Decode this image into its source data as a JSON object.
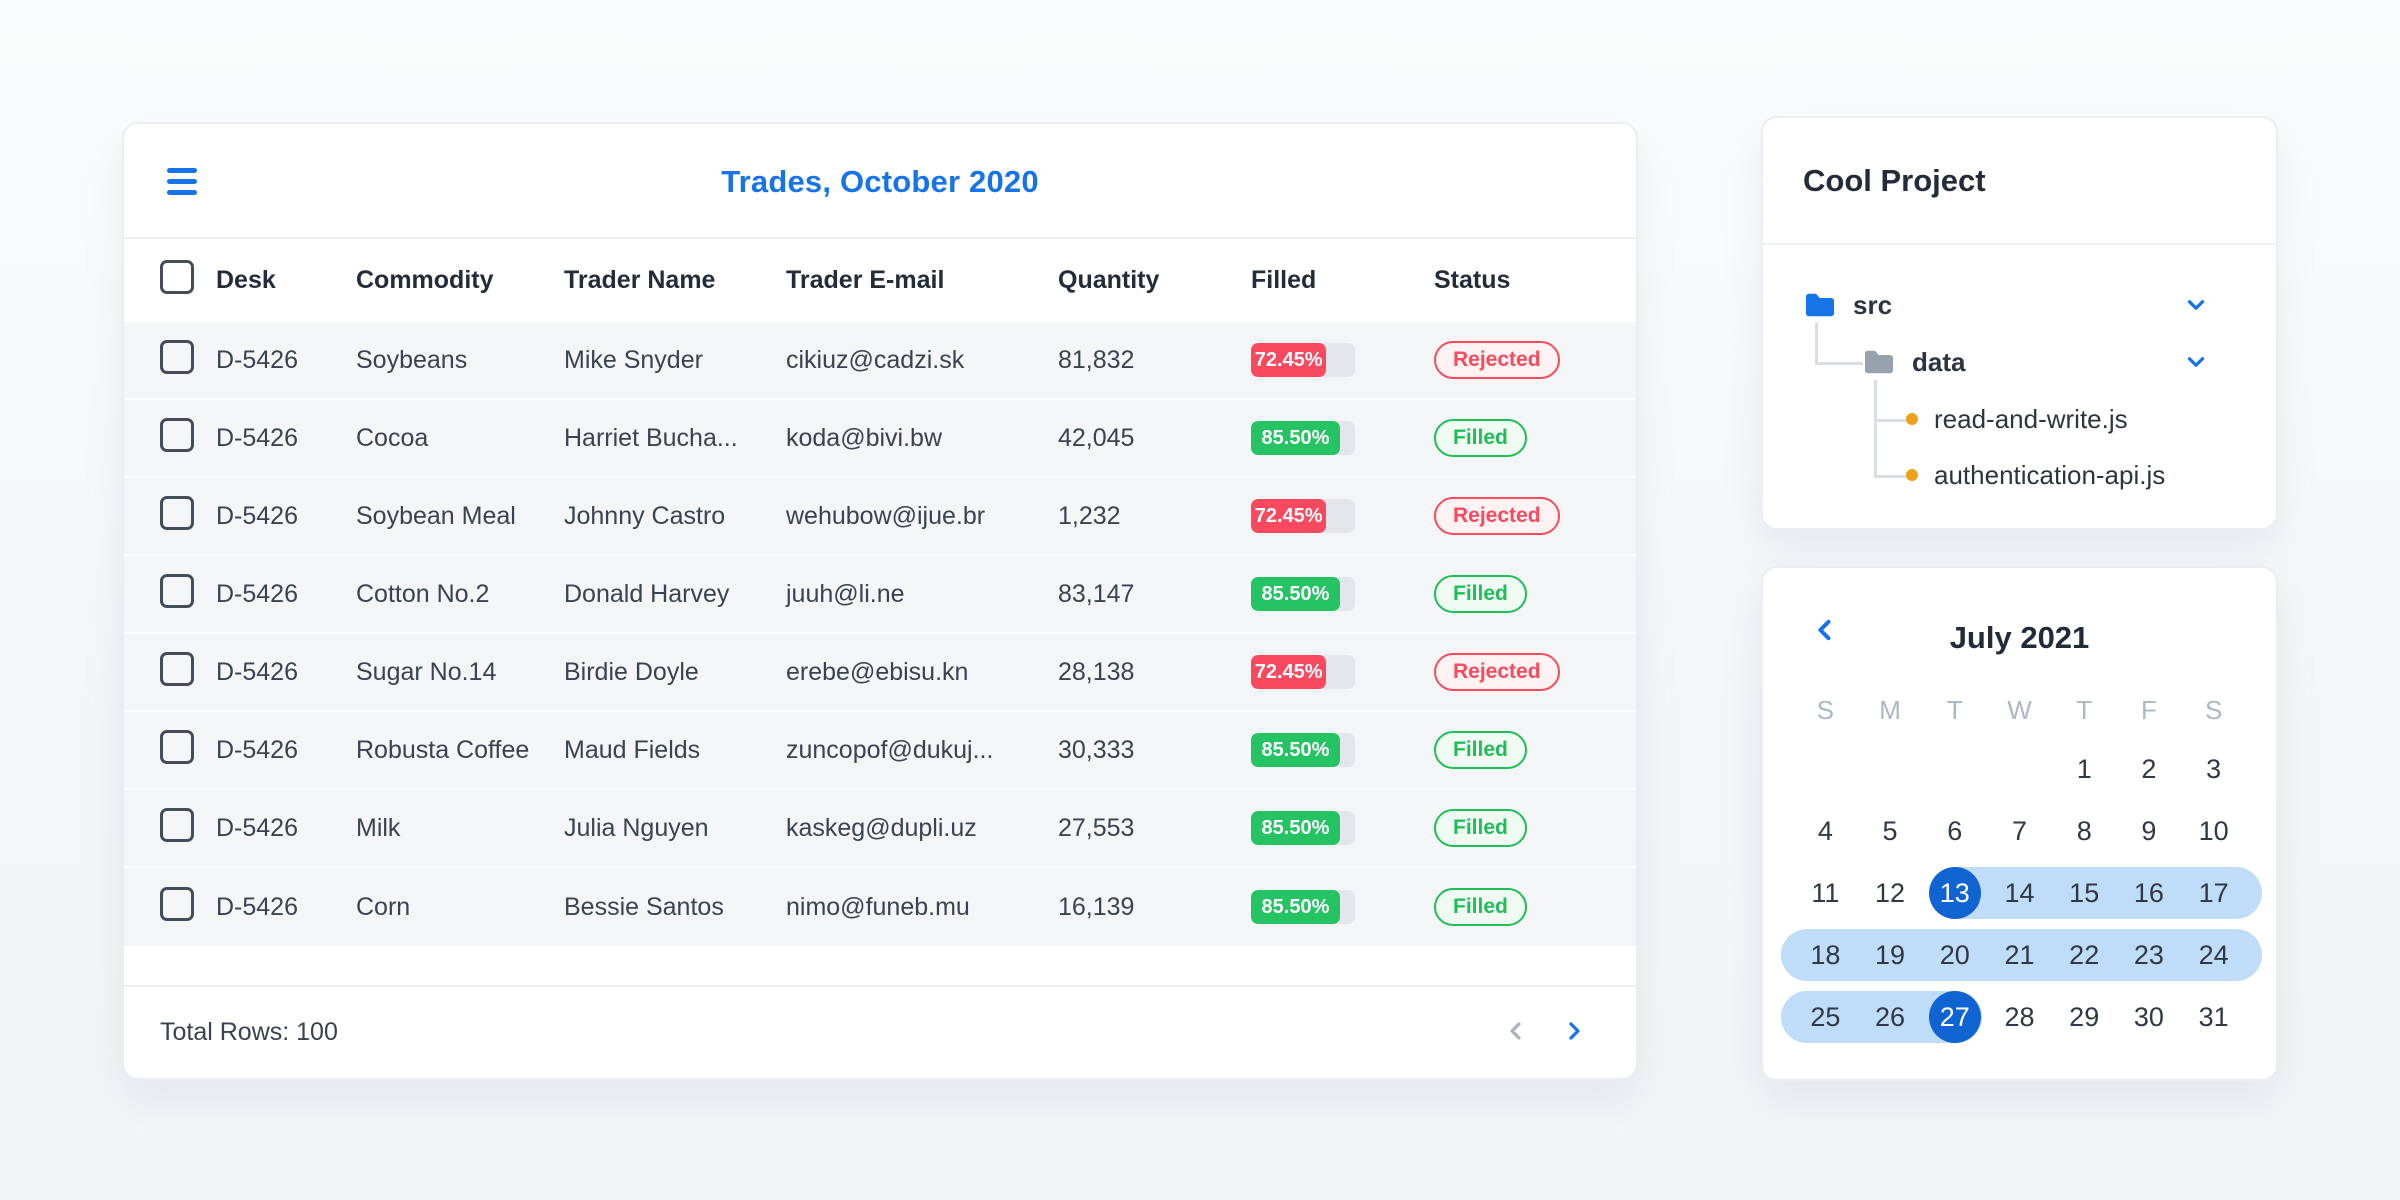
{
  "colors": {
    "accent_blue": "#1673E8",
    "selected_day_blue": "#1064D2",
    "range_blue": "#BFDCF8",
    "red": "#F8495F",
    "red_badge_bg": "#FEF2F3",
    "green": "#25C364",
    "green_badge_bg": "#EFFAF2",
    "progress_track": "#E3E6EA",
    "row_bg": "#F3F5F7",
    "file_dot_orange": "#F0A11C"
  },
  "trades": {
    "title": "Trades, October 2020",
    "columns": [
      "Desk",
      "Commodity",
      "Trader Name",
      "Trader E-mail",
      "Quantity",
      "Filled",
      "Status"
    ],
    "rows": [
      {
        "desk": "D-5426",
        "commodity": "Soybeans",
        "trader_name": "Mike Snyder",
        "trader_email": "cikiuz@cadzi.sk",
        "quantity": "81,832",
        "filled_label": "72.45%",
        "filled_pct": 72.45,
        "status": "Rejected"
      },
      {
        "desk": "D-5426",
        "commodity": "Cocoa",
        "trader_name": "Harriet Bucha...",
        "trader_email": "koda@bivi.bw",
        "quantity": "42,045",
        "filled_label": "85.50%",
        "filled_pct": 85.5,
        "status": "Filled"
      },
      {
        "desk": "D-5426",
        "commodity": "Soybean Meal",
        "trader_name": "Johnny Castro",
        "trader_email": "wehubow@ijue.br",
        "quantity": "1,232",
        "filled_label": "72.45%",
        "filled_pct": 72.45,
        "status": "Rejected"
      },
      {
        "desk": "D-5426",
        "commodity": "Cotton No.2",
        "trader_name": "Donald Harvey",
        "trader_email": "juuh@li.ne",
        "quantity": "83,147",
        "filled_label": "85.50%",
        "filled_pct": 85.5,
        "status": "Filled"
      },
      {
        "desk": "D-5426",
        "commodity": "Sugar No.14",
        "trader_name": "Birdie Doyle",
        "trader_email": "erebe@ebisu.kn",
        "quantity": "28,138",
        "filled_label": "72.45%",
        "filled_pct": 72.45,
        "status": "Rejected"
      },
      {
        "desk": "D-5426",
        "commodity": "Robusta Coffee",
        "trader_name": "Maud Fields",
        "trader_email": "zuncopof@dukuj...",
        "quantity": "30,333",
        "filled_label": "85.50%",
        "filled_pct": 85.5,
        "status": "Filled"
      },
      {
        "desk": "D-5426",
        "commodity": "Milk",
        "trader_name": "Julia Nguyen",
        "trader_email": "kaskeg@dupli.uz",
        "quantity": "27,553",
        "filled_label": "85.50%",
        "filled_pct": 85.5,
        "status": "Filled"
      },
      {
        "desk": "D-5426",
        "commodity": "Corn",
        "trader_name": "Bessie Santos",
        "trader_email": "nimo@funeb.mu",
        "quantity": "16,139",
        "filled_label": "85.50%",
        "filled_pct": 85.5,
        "status": "Filled"
      }
    ],
    "footer": {
      "total_rows_label": "Total Rows: 100"
    }
  },
  "project": {
    "title": "Cool Project",
    "tree": {
      "root_folder": "src",
      "sub_folder": "data",
      "files": [
        "read-and-write.js",
        "authentication-api.js"
      ]
    }
  },
  "calendar": {
    "title": "July 2021",
    "weekdays": [
      "S",
      "M",
      "T",
      "W",
      "T",
      "F",
      "S"
    ],
    "weeks": [
      [
        "",
        "",
        "",
        "",
        "1",
        "2",
        "3"
      ],
      [
        "4",
        "5",
        "6",
        "7",
        "8",
        "9",
        "10"
      ],
      [
        "11",
        "12",
        "13",
        "14",
        "15",
        "16",
        "17"
      ],
      [
        "18",
        "19",
        "20",
        "21",
        "22",
        "23",
        "24"
      ],
      [
        "25",
        "26",
        "27",
        "28",
        "29",
        "30",
        "31"
      ]
    ],
    "selected_start": "13",
    "selected_end": "27"
  }
}
